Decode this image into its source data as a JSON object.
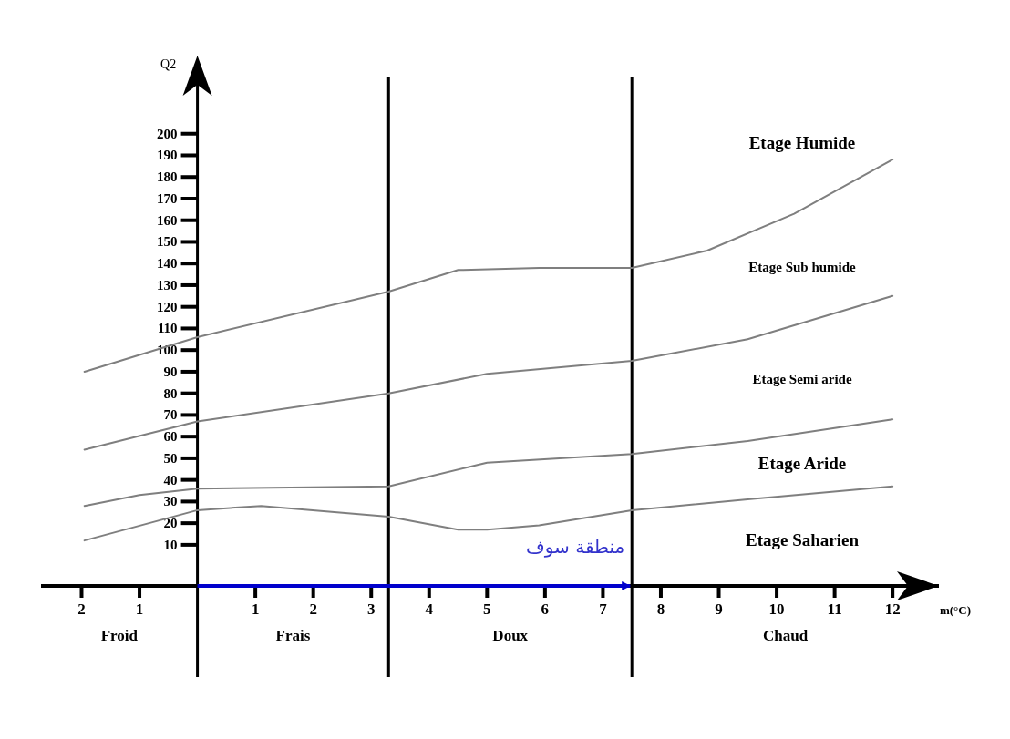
{
  "chart_data": {
    "type": "line",
    "xlabel": "m(°C)",
    "ylabel": "Q2",
    "xlim": [
      -2.7,
      12.8
    ],
    "ylim": [
      -9,
      226
    ],
    "xticks": [
      {
        "value": -2,
        "label": "2"
      },
      {
        "value": -1,
        "label": "1"
      },
      1,
      2,
      3,
      4,
      5,
      6,
      7,
      8,
      9,
      10,
      11,
      12
    ],
    "yticks": [
      10,
      20,
      30,
      40,
      50,
      60,
      70,
      80,
      90,
      100,
      110,
      120,
      130,
      140,
      150,
      160,
      170,
      180,
      190,
      200
    ],
    "series": [
      {
        "color": "#7f7f7f",
        "x": [
          -1.95,
          0,
          3.3,
          4.5,
          5.9,
          7.5,
          8.8,
          10.3,
          12
        ],
        "values": [
          90,
          106,
          127,
          137,
          138,
          138,
          146,
          163,
          188
        ]
      },
      {
        "color": "#7f7f7f",
        "x": [
          -1.95,
          0,
          3.3,
          5,
          7.5,
          9.5,
          12
        ],
        "values": [
          54,
          67,
          80,
          89,
          95,
          105,
          125
        ]
      },
      {
        "color": "#7f7f7f",
        "x": [
          -1.95,
          -1,
          0,
          3.3,
          5,
          7.5,
          9.5,
          12
        ],
        "values": [
          28,
          33,
          36,
          37,
          48,
          52,
          58,
          68
        ]
      },
      {
        "color": "#7f7f7f",
        "x": [
          -1.95,
          0,
          1.1,
          3.3,
          4.5,
          5,
          5.9,
          7.5,
          9.5,
          12
        ],
        "values": [
          12,
          26,
          28,
          23,
          17,
          17,
          19,
          26,
          31,
          37
        ]
      }
    ],
    "ref_lines": [
      {
        "axis": "x",
        "value": 0
      },
      {
        "axis": "x",
        "value": 3.3
      },
      {
        "axis": "x",
        "value": 7.5
      }
    ],
    "annotations": [
      "Froid",
      "Frais",
      "Doux",
      "Chaud",
      "Etage Humide",
      "Etage Sub humide",
      "Etage Semi aride",
      "Etage Aride",
      "Etage Saharien",
      "منطقة سوف"
    ],
    "grid": false,
    "line_style": "solid",
    "marker": "none"
  }
}
